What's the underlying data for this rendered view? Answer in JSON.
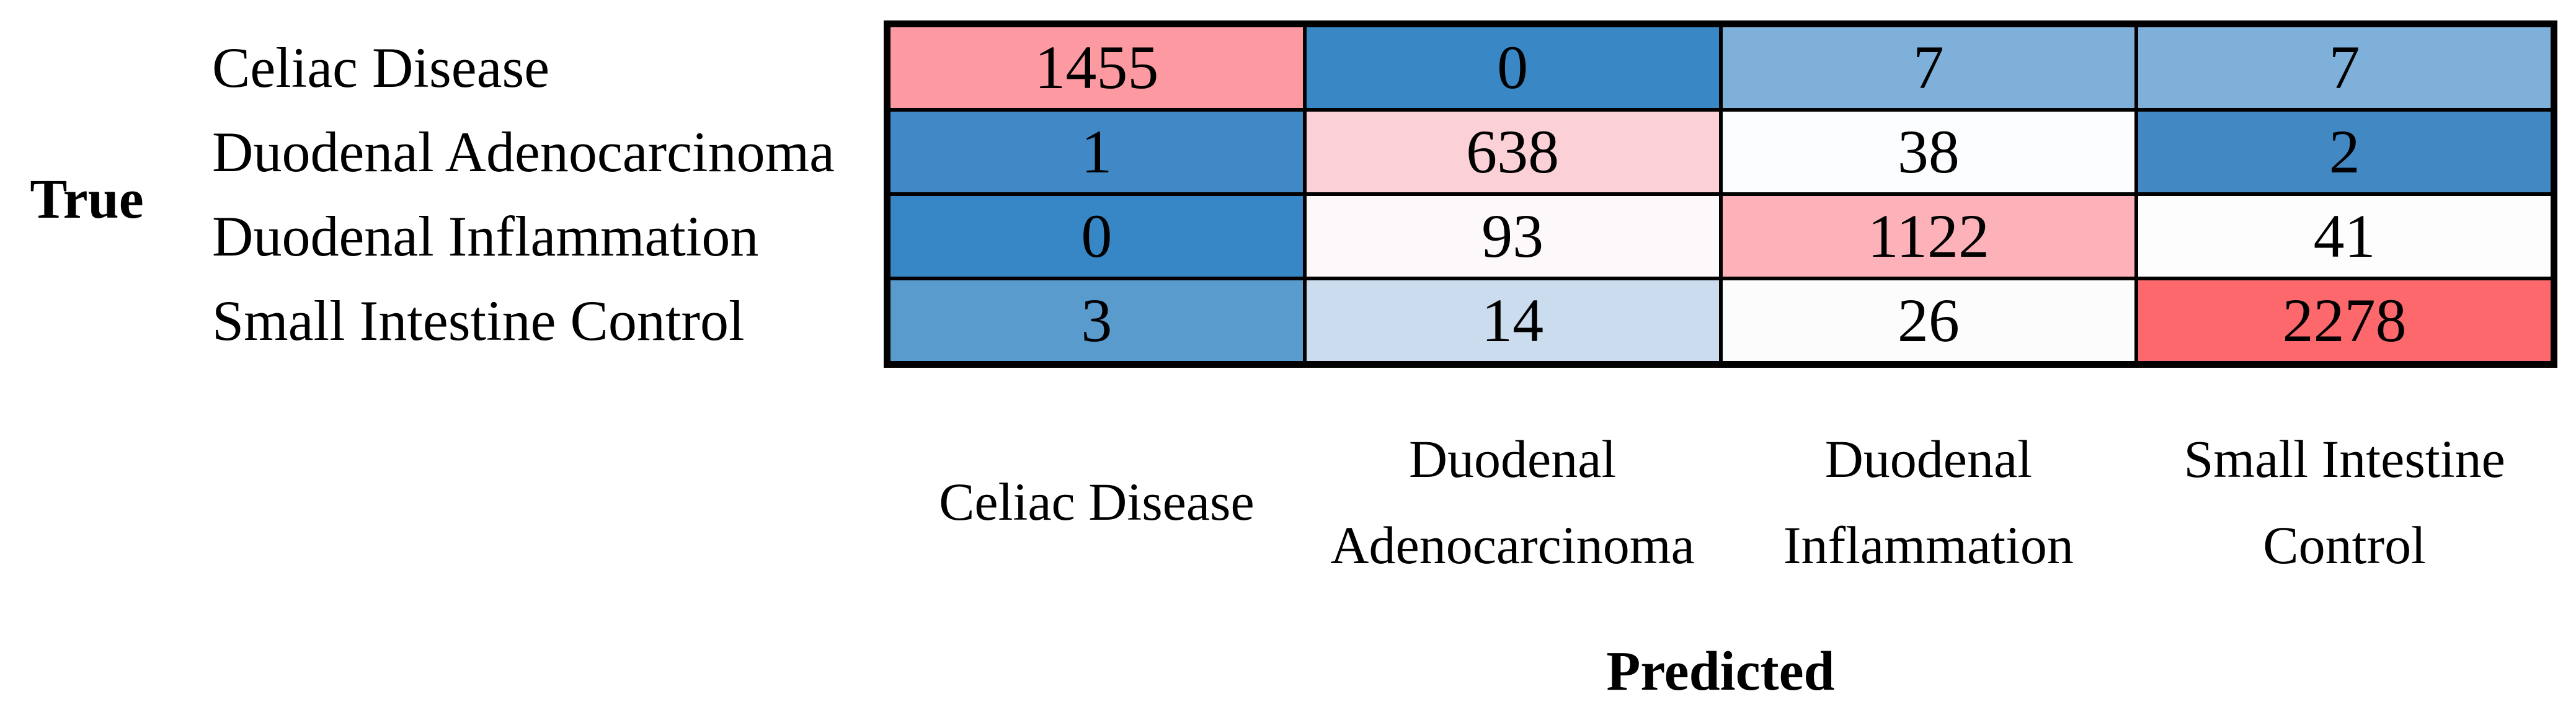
{
  "figure": {
    "y_axis_title": "True",
    "x_axis_title": "Predicted"
  },
  "chart_data": {
    "type": "heatmap",
    "xlabel": "Predicted",
    "ylabel": "True",
    "categories": [
      "Celiac Disease",
      "Duodenal Adenocarcinoma",
      "Duodenal Inflammation",
      "Small Intestine Control"
    ],
    "values": [
      [
        1455,
        0,
        7,
        7
      ],
      [
        1,
        638,
        38,
        2
      ],
      [
        0,
        93,
        1122,
        41
      ],
      [
        3,
        14,
        26,
        2278
      ]
    ],
    "cell_colors": [
      [
        "#FD9AA1",
        "#3A87C6",
        "#7FB0DA",
        "#7FB0DA"
      ],
      [
        "#4189C6",
        "#FBD1D7",
        "#FCFDFE",
        "#4288C3"
      ],
      [
        "#3786C6",
        "#FDF8F9",
        "#FCB2B8",
        "#FDFDFE"
      ],
      [
        "#5A9BCE",
        "#CBDCEE",
        "#FCFCFD",
        "#FC686C"
      ]
    ],
    "grid_color": "#000000",
    "legend": "none"
  },
  "predicted_axis": {
    "labels": [
      {
        "lines": [
          "Celiac Disease",
          ""
        ]
      },
      {
        "lines": [
          "Duodenal",
          "Adenocarcinoma"
        ]
      },
      {
        "lines": [
          "Duodenal",
          "Inflammation"
        ]
      },
      {
        "lines": [
          "Small Intestine",
          "Control"
        ]
      }
    ]
  }
}
